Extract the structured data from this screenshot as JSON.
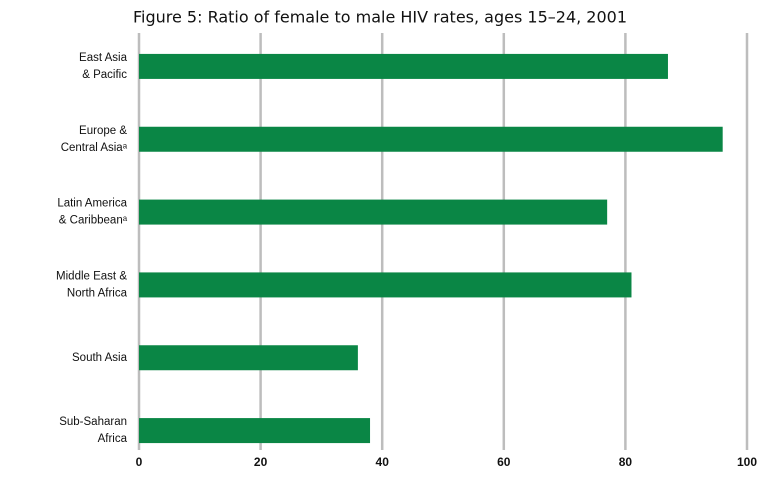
{
  "chart_data": {
    "type": "bar",
    "orientation": "horizontal",
    "title": "Figure 5: Ratio of female to male HIV rates, ages 15–24, 2001",
    "categories": [
      "East Asia\n& Pacific",
      "Europe &\nCentral Asiaᵃ",
      "Latin America\n& Caribbeanᵃ",
      "Middle East &\nNorth Africa",
      "South Asia",
      "Sub-Saharan\nAfrica"
    ],
    "values": [
      87,
      96,
      77,
      81,
      36,
      38
    ],
    "color": "#0a8645",
    "xlim": [
      0,
      100
    ],
    "xticks": [
      0,
      20,
      40,
      60,
      80,
      100
    ],
    "grid": true
  }
}
